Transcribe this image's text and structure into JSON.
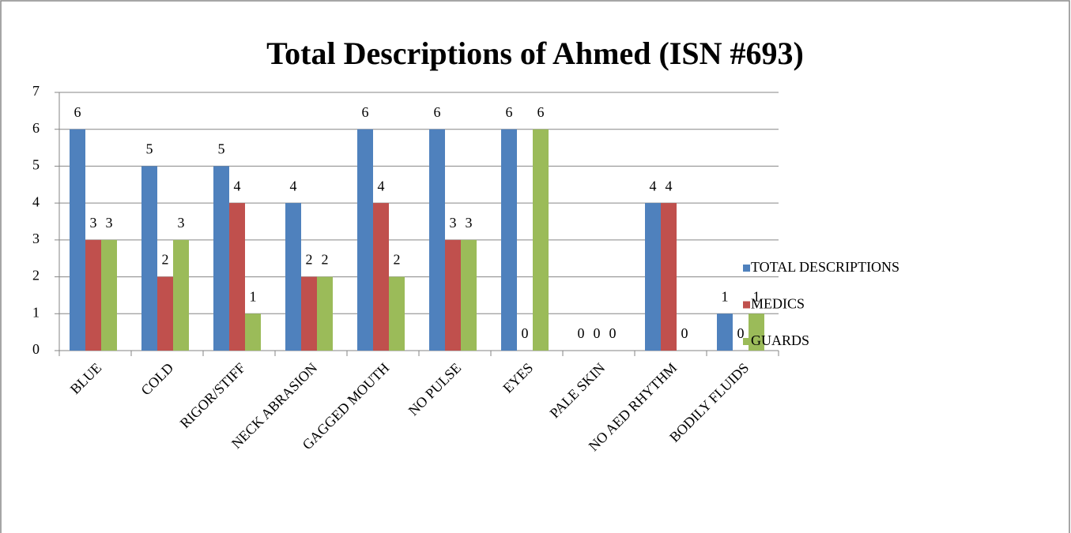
{
  "chart_data": {
    "type": "bar",
    "title": "Total Descriptions of Ahmed (ISN #693)",
    "categories": [
      "BLUE",
      "COLD",
      "RIGOR/STIFF",
      "NECK ABRASION",
      "GAGGED MOUTH",
      "NO PULSE",
      "EYES",
      "PALE SKIN",
      "NO AED RHYTHM",
      "BODILY FLUIDS"
    ],
    "series": [
      {
        "name": "TOTAL DESCRIPTIONS",
        "color": "#4f81bd",
        "values": [
          6,
          5,
          5,
          4,
          6,
          6,
          6,
          0,
          4,
          1
        ]
      },
      {
        "name": "MEDICS",
        "color": "#c0504d",
        "values": [
          3,
          2,
          4,
          2,
          4,
          3,
          0,
          0,
          4,
          0
        ]
      },
      {
        "name": "GUARDS",
        "color": "#9bbb59",
        "values": [
          3,
          3,
          1,
          2,
          2,
          3,
          6,
          0,
          0,
          1
        ]
      }
    ],
    "ylim": [
      0,
      7
    ],
    "yticks": [
      0,
      1,
      2,
      3,
      4,
      5,
      6,
      7
    ],
    "grid": true,
    "legend": "right"
  }
}
